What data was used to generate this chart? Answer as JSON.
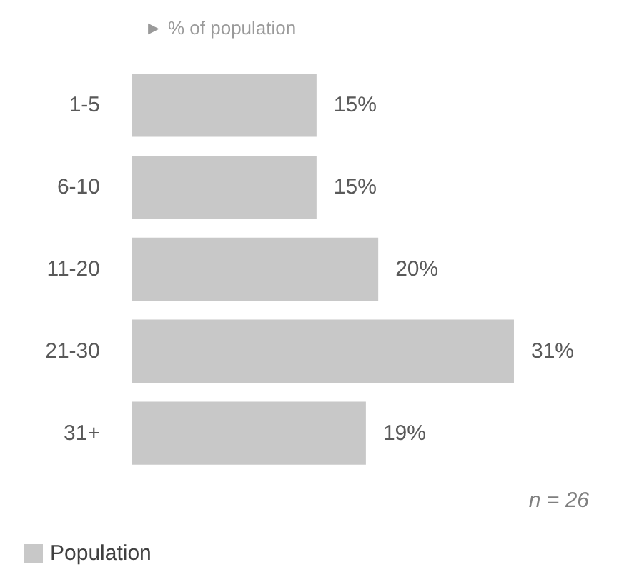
{
  "chart_data": {
    "type": "bar",
    "orientation": "horizontal",
    "xlabel": "► % of population",
    "categories": [
      "1-5",
      "6-10",
      "11-20",
      "21-30",
      "31+"
    ],
    "series": [
      {
        "name": "Population",
        "color": "#c8c8c8",
        "values": [
          15,
          15,
          20,
          31,
          19
        ],
        "value_labels": [
          "15%",
          "15%",
          "20%",
          "31%",
          "19%"
        ]
      }
    ],
    "annotations": [
      "n = 26"
    ],
    "legend": "bottom left"
  }
}
